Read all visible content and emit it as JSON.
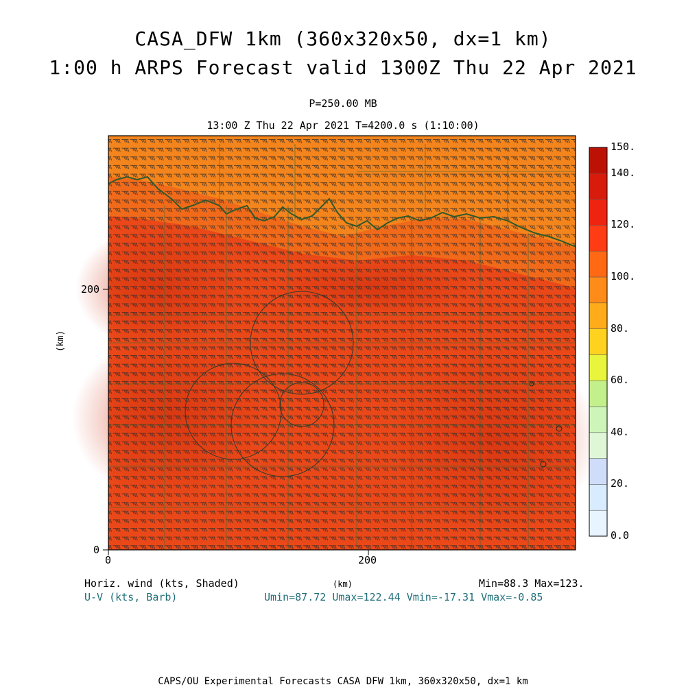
{
  "title_line1": "CASA_DFW 1km (360x320x50, dx=1 km)",
  "title_line2": "1:00 h ARPS Forecast valid 1300Z Thu 22 Apr 2021",
  "pressure_label": "P=250.00 MB",
  "time_label": "13:00 Z Thu 22 Apr 2021   T=4200.0 s (1:10:00)",
  "chart_data": {
    "type": "heatmap",
    "xlabel": "(km)",
    "ylabel": "(km)",
    "xlim": [
      0,
      360
    ],
    "ylim": [
      0,
      200
    ],
    "x_ticks": [
      "0",
      "200"
    ],
    "y_ticks": [
      "0",
      "200"
    ],
    "colorbar": {
      "levels": [
        0,
        10,
        20,
        30,
        40,
        50,
        60,
        70,
        80,
        90,
        100,
        110,
        120,
        130,
        140,
        150
      ],
      "labels": [
        "0.0",
        "20.",
        "40.",
        "60.",
        "80.",
        "100.",
        "120.",
        "140.",
        "150."
      ],
      "colors": [
        "#e8f4ff",
        "#d8ebff",
        "#cfdcfa",
        "#dff7d6",
        "#cdf5b9",
        "#c3f08a",
        "#e8f53c",
        "#ffd21f",
        "#ffab1a",
        "#ff8c19",
        "#ff6914",
        "#ff3c14",
        "#ee2411",
        "#d81c0c",
        "#bc1206"
      ]
    },
    "field_min": 88.3,
    "field_max": 123.0,
    "u_min": 87.72,
    "u_max": 122.44,
    "v_min": -17.31,
    "v_max": -0.85
  },
  "footer": {
    "left1": "Horiz. wind (kts, Shaded)",
    "left2": "U-V (kts, Barb)",
    "center": "(km)",
    "right1": "Min=88.3 Max=123.",
    "right2": "Umin=87.72 Umax=122.44 Vmin=-17.31 Vmax=-0.85",
    "bottom": "CAPS/OU Experimental Forecasts  CASA DFW 1km, 360x320x50, dx=1 km"
  }
}
